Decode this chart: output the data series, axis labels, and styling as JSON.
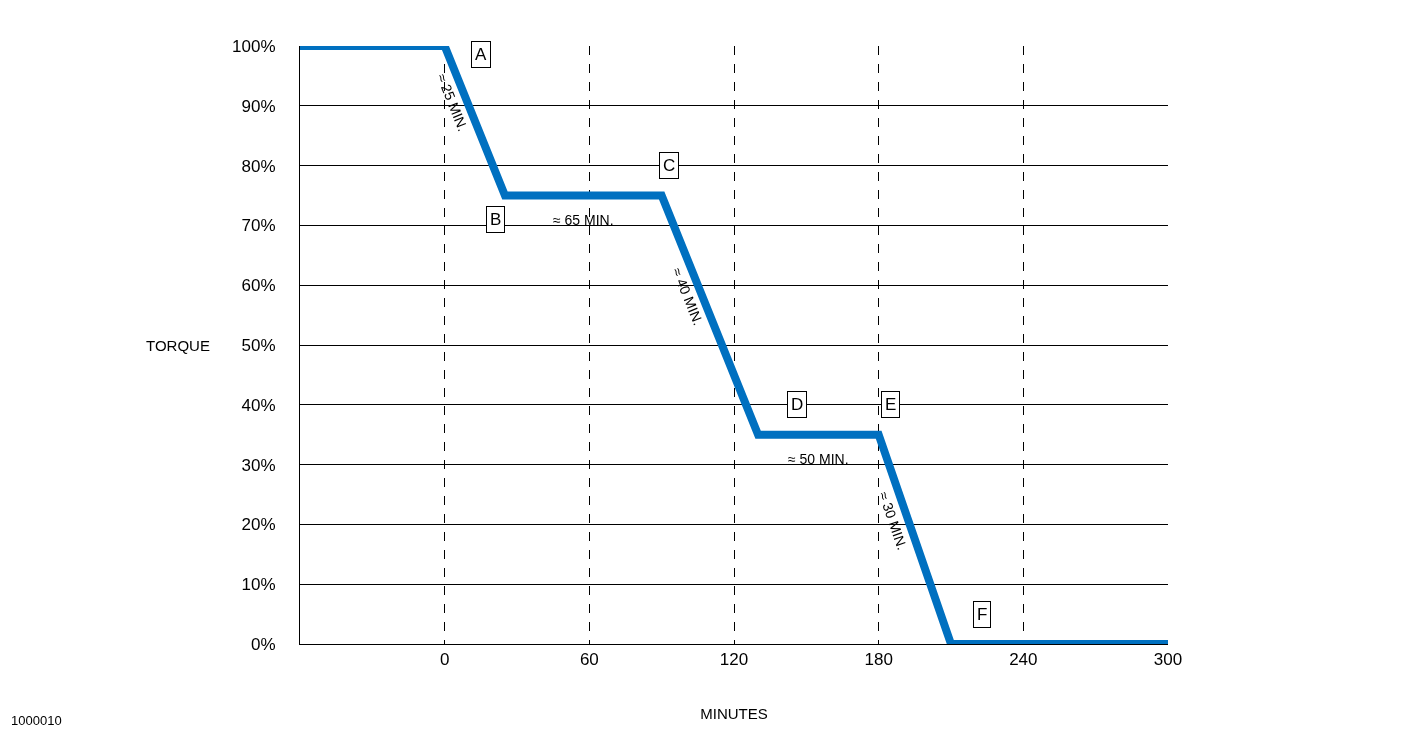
{
  "chart_data": {
    "type": "line",
    "xlabel": "MINUTES",
    "ylabel": "TORQUE",
    "x": [
      -60,
      0,
      25,
      90,
      130,
      180,
      210,
      300
    ],
    "series": [
      {
        "color": "#0070c0",
        "values": [
          100,
          100,
          75,
          75,
          35,
          35,
          0,
          0
        ]
      }
    ],
    "xlim": [
      -60,
      300
    ],
    "xticks": [
      0,
      60,
      120,
      180,
      240,
      300
    ],
    "ylim": [
      0,
      100
    ],
    "yticks": [
      {
        "value": 0,
        "label": "0%"
      },
      {
        "value": 10,
        "label": "10%"
      },
      {
        "value": 20,
        "label": "20%"
      },
      {
        "value": 30,
        "label": "30%"
      },
      {
        "value": 40,
        "label": "40%"
      },
      {
        "value": 50,
        "label": "50%"
      },
      {
        "value": 60,
        "label": "60%"
      },
      {
        "value": 70,
        "label": "70%"
      },
      {
        "value": 80,
        "label": "80%"
      },
      {
        "value": 90,
        "label": "90%"
      },
      {
        "value": 100,
        "label": "100%"
      }
    ],
    "grid": true,
    "annotations": [
      {
        "text": "A",
        "x": 15,
        "y": 98.5
      },
      {
        "text": "B",
        "x": 21,
        "y": 71
      },
      {
        "text": "C",
        "x": 93,
        "y": 80
      },
      {
        "text": "D",
        "x": 146,
        "y": 40
      },
      {
        "text": "E",
        "x": 185,
        "y": 40
      },
      {
        "text": "F",
        "x": 223,
        "y": 5
      },
      "≈ 25 MIN.",
      "≈ 65 MIN.",
      "≈ 40 MIN.",
      "≈ 50 MIN.",
      "≈ 30 MIN.",
      "1000010"
    ]
  }
}
